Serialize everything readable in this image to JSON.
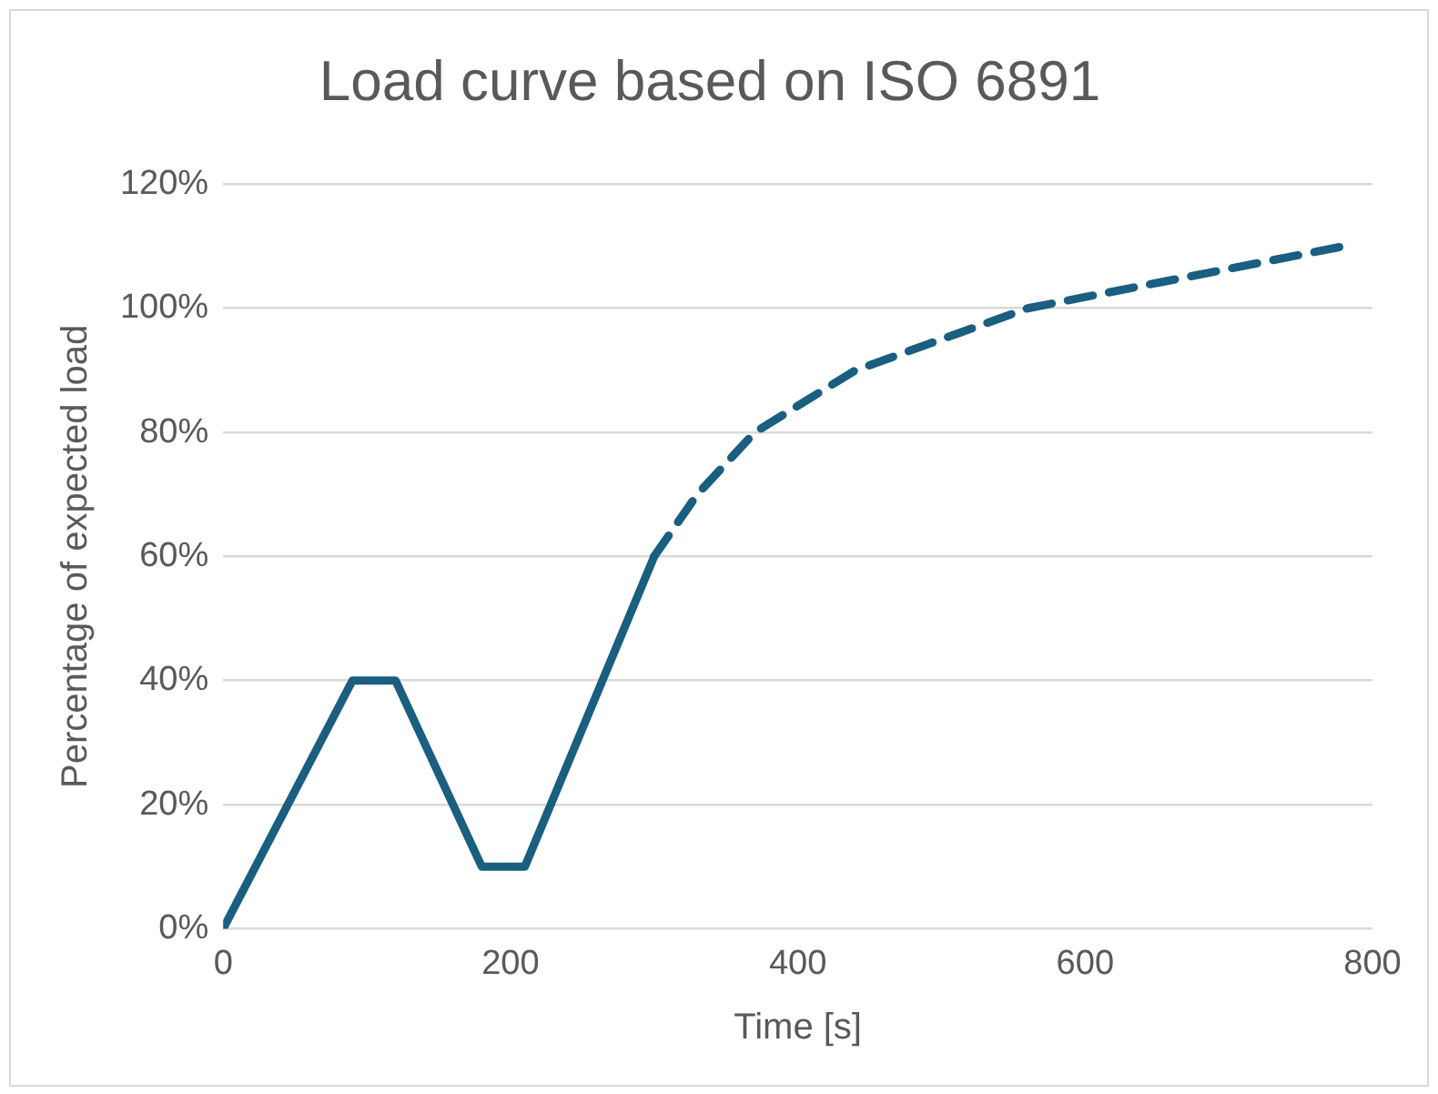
{
  "chart_data": {
    "type": "line",
    "title": "Load curve based on ISO 6891",
    "xlabel": "Time [s]",
    "ylabel": "Percentage of expected load",
    "series": [
      {
        "color": "#1a5e80",
        "line_style": "solid",
        "x": [
          0,
          90,
          120,
          180,
          210,
          300
        ],
        "values": [
          0,
          40,
          40,
          10,
          10,
          60
        ]
      },
      {
        "color": "#1a5e80",
        "line_style": "dashed",
        "x": [
          300,
          315,
          330,
          370,
          440,
          560,
          780
        ],
        "values": [
          60,
          65,
          70,
          80,
          90,
          100,
          110
        ]
      }
    ],
    "xlim": [
      0,
      800
    ],
    "xticks": [
      0,
      200,
      400,
      600,
      800
    ],
    "ylim": [
      0,
      120
    ],
    "yticks": [
      {
        "value": 0,
        "label": "0%"
      },
      {
        "value": 20,
        "label": "20%"
      },
      {
        "value": 40,
        "label": "40%"
      },
      {
        "value": 60,
        "label": "60%"
      },
      {
        "value": 80,
        "label": "80%"
      },
      {
        "value": 100,
        "label": "100%"
      },
      {
        "value": 120,
        "label": "120%"
      }
    ],
    "grid": "y",
    "legend": false,
    "marker": "none"
  }
}
